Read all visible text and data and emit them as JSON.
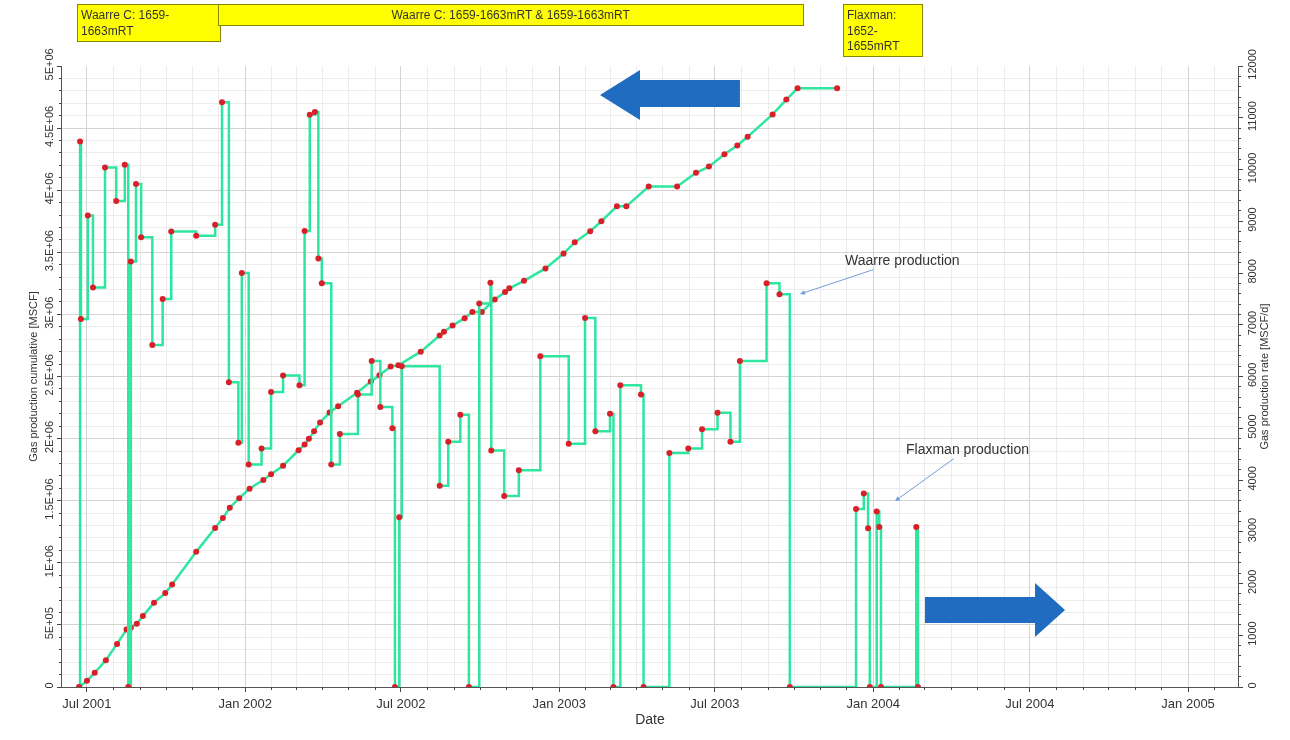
{
  "chart_data": {
    "type": "line",
    "xlabel": "Date",
    "ylabel": "Gas production cumulative [MSCF]",
    "y2label": "Gas production rate [MSCF/d]",
    "xlim": [
      "2001-06-02",
      "2005-02-28"
    ],
    "xticks": [
      {
        "value": "2001-07-01",
        "label": "Jul 2001"
      },
      {
        "value": "2002-01-01",
        "label": "Jan 2002"
      },
      {
        "value": "2002-07-01",
        "label": "Jul 2002"
      },
      {
        "value": "2003-01-01",
        "label": "Jan 2003"
      },
      {
        "value": "2003-07-01",
        "label": "Jul 2003"
      },
      {
        "value": "2004-01-01",
        "label": "Jan 2004"
      },
      {
        "value": "2004-07-01",
        "label": "Jul 2004"
      },
      {
        "value": "2005-01-01",
        "label": "Jan 2005"
      }
    ],
    "ylim": [
      0,
      5000000
    ],
    "yticks": [
      0,
      {
        "value": 500000,
        "label": "5E+05"
      },
      {
        "value": 1000000,
        "label": "1E+06"
      },
      {
        "value": 1500000,
        "label": "1.5E+06"
      },
      {
        "value": 2000000,
        "label": "2E+06"
      },
      {
        "value": 2500000,
        "label": "2.5E+06"
      },
      {
        "value": 3000000,
        "label": "3E+06"
      },
      {
        "value": 3500000,
        "label": "3.5E+06"
      },
      {
        "value": 4000000,
        "label": "4E+06"
      },
      {
        "value": 4500000,
        "label": "4.5E+06"
      },
      {
        "value": 5000000,
        "label": "5E+06"
      }
    ],
    "y2lim": [
      0,
      12000
    ],
    "y2ticks": [
      0,
      1000,
      2000,
      3000,
      4000,
      5000,
      6000,
      7000,
      8000,
      9000,
      10000,
      11000,
      12000
    ],
    "grid": true,
    "marker": "circle",
    "line_style": "solid",
    "series": [
      {
        "color": "#2ee6a0",
        "x": [
          "2001-06-22",
          "2001-07-01",
          "2001-07-10",
          "2001-07-23",
          "2001-08-05",
          "2001-08-16",
          "2001-08-21",
          "2001-08-28",
          "2001-09-04",
          "2001-09-17",
          "2001-09-30",
          "2001-10-08",
          "2001-11-05",
          "2001-11-27",
          "2001-12-06",
          "2001-12-14",
          "2001-12-25",
          "2002-01-06",
          "2002-01-22",
          "2002-01-31",
          "2002-02-14",
          "2002-03-04",
          "2002-03-11",
          "2002-03-16",
          "2002-03-22",
          "2002-03-29",
          "2002-04-09",
          "2002-04-19",
          "2002-05-11",
          "2002-05-27",
          "2002-06-06",
          "2002-06-19",
          "2002-06-28",
          "2002-07-24",
          "2002-08-15",
          "2002-08-20",
          "2002-08-30",
          "2002-09-13",
          "2002-09-22",
          "2002-10-03",
          "2002-10-18",
          "2002-10-30",
          "2002-11-04",
          "2002-11-21",
          "2002-12-16",
          "2003-01-06",
          "2003-01-19",
          "2003-02-06",
          "2003-02-19",
          "2003-03-09",
          "2003-03-20",
          "2003-04-15",
          "2003-05-18",
          "2003-06-09",
          "2003-06-24",
          "2003-07-12",
          "2003-07-27",
          "2003-08-08",
          "2003-09-06",
          "2003-09-22",
          "2003-10-05",
          "2003-11-20"
        ],
        "values": [
          0,
          50000,
          115000,
          216000,
          347000,
          463000,
          478000,
          510000,
          571000,
          679000,
          756000,
          826000,
          1088000,
          1281000,
          1360000,
          1443000,
          1520000,
          1597000,
          1667000,
          1713000,
          1782000,
          1906000,
          1952000,
          1998000,
          2060000,
          2130000,
          2210000,
          2260000,
          2370000,
          2460000,
          2510000,
          2580000,
          2590000,
          2700000,
          2830000,
          2860000,
          2910000,
          2970000,
          3020000,
          3020000,
          3120000,
          3180000,
          3210000,
          3270000,
          3370000,
          3490000,
          3580000,
          3670000,
          3750000,
          3870000,
          3870000,
          4030000,
          4030000,
          4140000,
          4190000,
          4290000,
          4360000,
          4430000,
          4610000,
          4730000,
          4820000,
          4820000
        ],
        "colors": [
          "#d9202a",
          "#d9202a",
          "#d9202a",
          "#d9202a",
          "#d9202a",
          "#d9202a",
          "#d9202a",
          "#d9202a",
          "#d9202a",
          "#d9202a",
          "#d9202a",
          "#d9202a",
          "#d9202a",
          "#d9202a",
          "#d9202a",
          "#d9202a",
          "#d9202a",
          "#d9202a",
          "#d9202a",
          "#d9202a",
          "#d9202a",
          "#d9202a",
          "#d9202a",
          "#d9202a",
          "#d9202a",
          "#d9202a",
          "#d9202a",
          "#d9202a",
          "#d9202a",
          "#d9202a",
          "#d9202a",
          "#d9202a",
          "#d9202a",
          "#d9202a",
          "#d9202a",
          "#d9202a",
          "#d9202a",
          "#d9202a",
          "#d9202a",
          "#d9202a",
          "#d9202a",
          "#d9202a",
          "#d9202a",
          "#d9202a",
          "#d9202a",
          "#d9202a",
          "#d9202a",
          "#d9202a",
          "#d9202a",
          "#d9202a",
          "#d9202a",
          "#d9202a",
          "#d9202a",
          "#d9202a",
          "#d9202a",
          "#d9202a",
          "#d9202a",
          "#d9202a",
          "#d9202a",
          "#d9202a",
          "#d9202a",
          "#d9202a"
        ]
      },
      {
        "type": "step",
        "axis": "y2",
        "color": "#2ee6a0",
        "x": [
          "2001-06-22",
          "2001-06-23",
          "2001-06-24",
          "2001-07-02",
          "2001-07-08",
          "2001-07-22",
          "2001-08-04",
          "2001-08-14",
          "2001-08-18",
          "2001-08-21",
          "2001-08-27",
          "2001-09-02",
          "2001-09-15",
          "2001-09-27",
          "2001-10-07",
          "2001-11-05",
          "2001-11-27",
          "2001-12-05",
          "2001-12-13",
          "2001-12-24",
          "2001-12-28",
          "2002-01-05",
          "2002-01-20",
          "2002-01-31",
          "2002-02-14",
          "2002-03-05",
          "2002-03-11",
          "2002-03-17",
          "2002-03-23",
          "2002-03-27",
          "2002-03-31",
          "2002-04-11",
          "2002-04-21",
          "2002-05-12",
          "2002-05-28",
          "2002-06-07",
          "2002-06-21",
          "2002-06-24",
          "2002-06-29",
          "2002-07-02",
          "2002-08-15",
          "2002-08-25",
          "2002-09-08",
          "2002-09-18",
          "2002-09-30",
          "2002-10-13",
          "2002-10-14",
          "2002-10-29",
          "2002-11-15",
          "2002-12-10",
          "2003-01-12",
          "2003-01-31",
          "2003-02-12",
          "2003-03-01",
          "2003-03-05",
          "2003-03-13",
          "2003-04-06",
          "2003-04-09",
          "2003-05-09",
          "2003-05-31",
          "2003-06-16",
          "2003-07-04",
          "2003-07-19",
          "2003-07-30",
          "2003-08-30",
          "2003-09-14",
          "2003-09-26",
          "2003-12-12",
          "2003-12-21",
          "2003-12-26",
          "2003-12-28",
          "2004-01-05",
          "2004-01-08",
          "2004-01-10",
          "2004-02-20",
          "2004-02-22"
        ],
        "values": [
          0,
          10540,
          7110,
          9110,
          7720,
          10040,
          9390,
          10090,
          0,
          8220,
          9720,
          8690,
          6610,
          7500,
          8800,
          8720,
          8930,
          11300,
          5890,
          4720,
          8000,
          4300,
          4610,
          5700,
          6020,
          5830,
          8810,
          11060,
          11110,
          8280,
          7800,
          4300,
          4890,
          5650,
          6300,
          5410,
          5000,
          0,
          3280,
          6200,
          3890,
          4740,
          5260,
          0,
          7410,
          7810,
          4570,
          3690,
          4190,
          6390,
          4700,
          7130,
          4940,
          5280,
          0,
          5830,
          5650,
          0,
          4520,
          4610,
          4980,
          5300,
          4740,
          6300,
          7800,
          7590,
          0,
          3440,
          3740,
          3070,
          0,
          3390,
          3090,
          0,
          3090,
          0
        ],
        "colors": [
          "#d9202a",
          "#d9202a",
          "#d9202a",
          "#d9202a",
          "#d9202a",
          "#d9202a",
          "#d9202a",
          "#d9202a",
          "#d9202a",
          "#d9202a",
          "#d9202a",
          "#d9202a",
          "#d9202a",
          "#d9202a",
          "#d9202a",
          "#d9202a",
          "#d9202a",
          "#d9202a",
          "#d9202a",
          "#d9202a",
          "#d9202a",
          "#d9202a",
          "#d9202a",
          "#d9202a",
          "#d9202a",
          "#d9202a",
          "#d9202a",
          "#d9202a",
          "#d9202a",
          "#d9202a",
          "#d9202a",
          "#d9202a",
          "#d9202a",
          "#d9202a",
          "#d9202a",
          "#d9202a",
          "#d9202a",
          "#d9202a",
          "#d9202a",
          "#d9202a",
          "#d9202a",
          "#d9202a",
          "#d9202a",
          "#d9202a",
          "#d9202a",
          "#d9202a",
          "#d9202a",
          "#d9202a",
          "#d9202a",
          "#d9202a",
          "#d9202a",
          "#d9202a",
          "#d9202a",
          "#d9202a",
          "#d9202a",
          "#d9202a",
          "#d9202a",
          "#d9202a",
          "#d9202a",
          "#d9202a",
          "#d9202a",
          "#d9202a",
          "#d9202a",
          "#d9202a",
          "#d9202a",
          "#d9202a",
          "#d9202a",
          "#d9202a",
          "#d9202a",
          "#d9202a",
          "#d9202a",
          "#d9202a",
          "#d9202a",
          "#d9202a",
          "#d9202a",
          "#d9202a"
        ]
      }
    ],
    "annotations": [
      "Waarre C: 1659-\n1663mRT",
      "Waarre C: 1659-1663mRT & 1659-1663mRT",
      "Flaxman:\n1652-\n1655mRT",
      "Waarre production",
      "Flaxman production"
    ]
  }
}
